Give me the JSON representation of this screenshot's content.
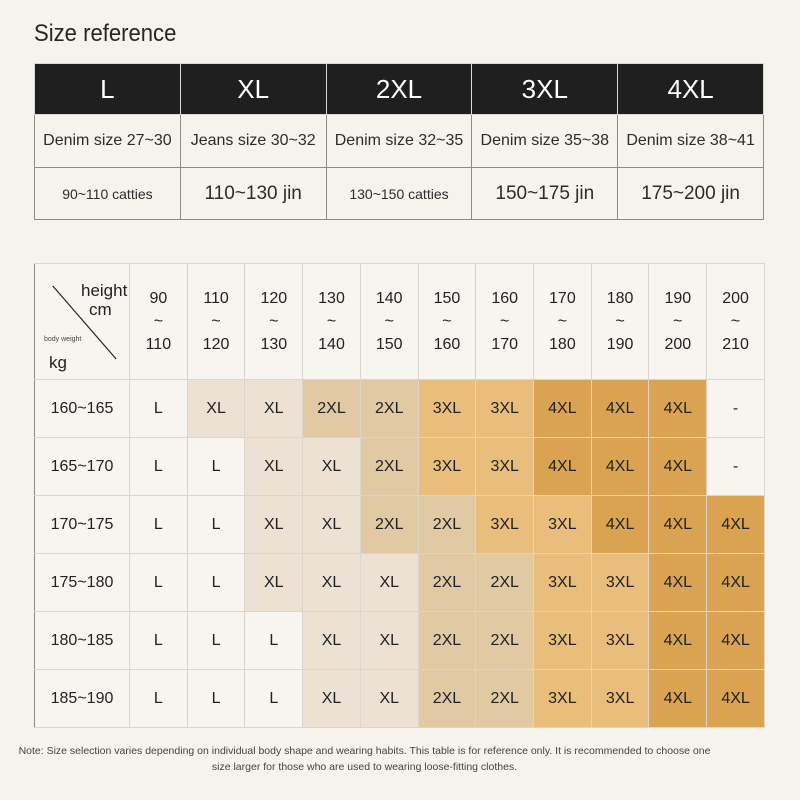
{
  "title": "Size reference",
  "top_table": {
    "sizes": [
      "L",
      "XL",
      "2XL",
      "3XL",
      "4XL"
    ],
    "denim": [
      "Denim size 27~30",
      "Jeans size 30~32",
      "Denim size 32~35",
      "Denim size 35~38",
      "Denim size 38~41"
    ],
    "weight": [
      "90~110 catties",
      "110~130 jin",
      "130~150 catties",
      "150~175 jin",
      "175~200 jin"
    ]
  },
  "grid": {
    "corner": {
      "height_label": "height",
      "cm_label": "cm",
      "body_weight_label": "body weight",
      "kg_label": "kg"
    },
    "columns": [
      {
        "top": "90",
        "sep": "~",
        "bottom": "110"
      },
      {
        "top": "110",
        "sep": "~",
        "bottom": "120"
      },
      {
        "top": "120",
        "sep": "~",
        "bottom": "130"
      },
      {
        "top": "130",
        "sep": "~",
        "bottom": "140"
      },
      {
        "top": "140",
        "sep": "~",
        "bottom": "150"
      },
      {
        "top": "150",
        "sep": "~",
        "bottom": "160"
      },
      {
        "top": "160",
        "sep": "~",
        "bottom": "170"
      },
      {
        "top": "170",
        "sep": "~",
        "bottom": "180"
      },
      {
        "top": "180",
        "sep": "~",
        "bottom": "190"
      },
      {
        "top": "190",
        "sep": "~",
        "bottom": "200"
      },
      {
        "top": "200",
        "sep": "~",
        "bottom": "210"
      }
    ],
    "rows": [
      {
        "label": "160~165",
        "cells": [
          "L",
          "XL",
          "XL",
          "2XL",
          "2XL",
          "3XL",
          "3XL",
          "4XL",
          "4XL",
          "4XL",
          "-"
        ]
      },
      {
        "label": "165~170",
        "cells": [
          "L",
          "L",
          "XL",
          "XL",
          "2XL",
          "3XL",
          "3XL",
          "4XL",
          "4XL",
          "4XL",
          "-"
        ]
      },
      {
        "label": "170~175",
        "cells": [
          "L",
          "L",
          "XL",
          "XL",
          "2XL",
          "2XL",
          "3XL",
          "3XL",
          "4XL",
          "4XL",
          "4XL"
        ]
      },
      {
        "label": "175~180",
        "cells": [
          "L",
          "L",
          "XL",
          "XL",
          "XL",
          "2XL",
          "2XL",
          "3XL",
          "3XL",
          "4XL",
          "4XL"
        ]
      },
      {
        "label": "180~185",
        "cells": [
          "L",
          "L",
          "L",
          "XL",
          "XL",
          "2XL",
          "2XL",
          "3XL",
          "3XL",
          "4XL",
          "4XL"
        ]
      },
      {
        "label": "185~190",
        "cells": [
          "L",
          "L",
          "L",
          "XL",
          "XL",
          "2XL",
          "2XL",
          "3XL",
          "3XL",
          "4XL",
          "4XL"
        ]
      }
    ],
    "shades": [
      [
        0,
        1,
        1,
        2,
        2,
        3,
        3,
        4,
        4,
        4,
        0
      ],
      [
        0,
        0,
        1,
        1,
        2,
        3,
        3,
        4,
        4,
        4,
        0
      ],
      [
        0,
        0,
        1,
        1,
        2,
        2,
        3,
        3,
        4,
        4,
        4
      ],
      [
        0,
        0,
        1,
        1,
        1,
        2,
        2,
        3,
        3,
        4,
        4
      ],
      [
        0,
        0,
        0,
        1,
        1,
        2,
        2,
        3,
        3,
        4,
        4
      ],
      [
        0,
        0,
        0,
        1,
        1,
        2,
        2,
        3,
        3,
        4,
        4
      ]
    ],
    "colors": [
      "#f8f5f0",
      "#ece1d3",
      "#e1c9a4",
      "#e9bd7c",
      "#d9a352"
    ]
  },
  "note": "Note: Size selection varies depending on individual body shape and wearing habits. This table is for reference only. It is recommended to choose one size larger for those who are used to wearing loose-fitting clothes."
}
